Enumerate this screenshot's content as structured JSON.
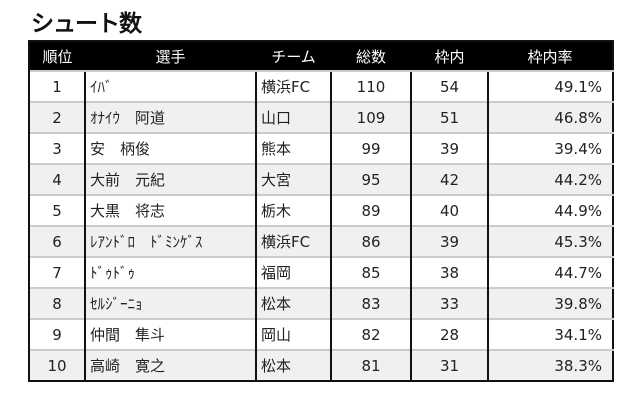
{
  "title": "シュート数",
  "headers": [
    "順位",
    "選手",
    "チーム",
    "総数",
    "枠内",
    "枠内率"
  ],
  "rows": [
    [
      "1",
      "ｲﾊﾞ",
      "横浜FC",
      "110",
      "54",
      "49.1%"
    ],
    [
      "2",
      "ｵﾅｲｳ　阿道",
      "山口",
      "109",
      "51",
      "46.8%"
    ],
    [
      "3",
      "安　柄俊",
      "熊本",
      "99",
      "39",
      "39.4%"
    ],
    [
      "4",
      "大前　元紀",
      "大宮",
      "95",
      "42",
      "44.2%"
    ],
    [
      "5",
      "大黒　将志",
      "栃木",
      "89",
      "40",
      "44.9%"
    ],
    [
      "6",
      "ﾚｱﾝﾄﾞﾛ　ﾄﾞﾐﾝｹﾞｽ",
      "横浜FC",
      "86",
      "39",
      "45.3%"
    ],
    [
      "7",
      "ﾄﾞｩﾄﾞｩ",
      "福岡",
      "85",
      "38",
      "44.7%"
    ],
    [
      "8",
      "ｾﾙｼﾞｰﾆｮ",
      "松本",
      "83",
      "33",
      "39.8%"
    ],
    [
      "9",
      "仲間　隼斗",
      "岡山",
      "82",
      "28",
      "34.1%"
    ],
    [
      "10",
      "高崎　寛之",
      "松本",
      "81",
      "31",
      "38.3%"
    ]
  ]
}
